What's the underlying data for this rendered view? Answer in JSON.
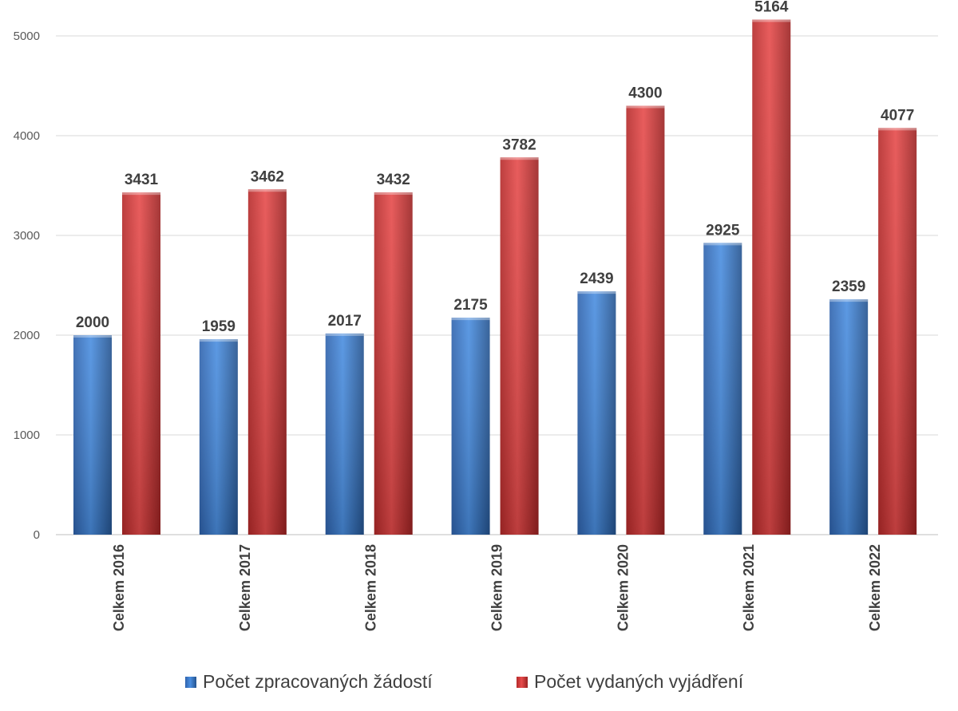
{
  "chart_data": {
    "type": "bar",
    "categories": [
      "Celkem 2016",
      "Celkem 2017",
      "Celkem 2018",
      "Celkem 2019",
      "Celkem 2020",
      "Celkem 2021",
      "Celkem 2022"
    ],
    "series": [
      {
        "name": "Počet zpracovaných žádostí",
        "values": [
          2000,
          1959,
          2017,
          2175,
          2439,
          2925,
          2359
        ],
        "color": "#3a78c9"
      },
      {
        "name": "Počet vydaných vyjádření",
        "values": [
          3431,
          3462,
          3432,
          3782,
          4300,
          5164,
          4077
        ],
        "color": "#d33b3b"
      }
    ],
    "yticks": [
      0,
      1000,
      2000,
      3000,
      4000,
      5000
    ],
    "ylim": [
      0,
      5200
    ],
    "grid": true,
    "data_labels": true,
    "legend_position": "bottom"
  }
}
